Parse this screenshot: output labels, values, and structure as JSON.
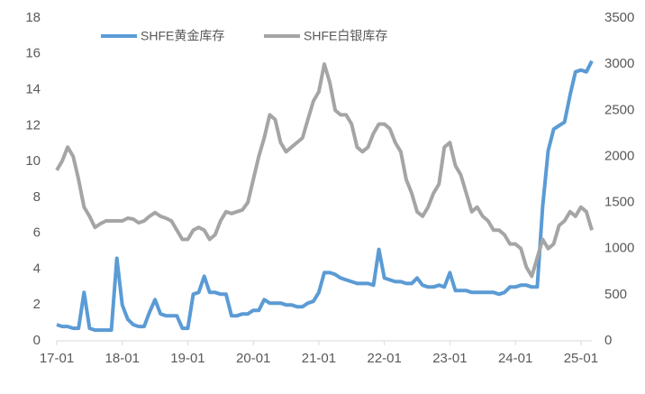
{
  "chart_data": {
    "type": "line",
    "categories": [
      "17-01",
      null,
      null,
      null,
      null,
      null,
      null,
      null,
      null,
      null,
      null,
      null,
      "18-01",
      null,
      null,
      null,
      null,
      null,
      null,
      null,
      null,
      null,
      null,
      null,
      "19-01",
      null,
      null,
      null,
      null,
      null,
      null,
      null,
      null,
      null,
      null,
      null,
      "20-01",
      null,
      null,
      null,
      null,
      null,
      null,
      null,
      null,
      null,
      null,
      null,
      "21-01",
      null,
      null,
      null,
      null,
      null,
      null,
      null,
      null,
      null,
      null,
      null,
      "22-01",
      null,
      null,
      null,
      null,
      null,
      null,
      null,
      null,
      null,
      null,
      null,
      "23-01",
      null,
      null,
      null,
      null,
      null,
      null,
      null,
      null,
      null,
      null,
      null,
      "24-01",
      null,
      null,
      null,
      null,
      null,
      null,
      null,
      null,
      null,
      null,
      null,
      "25-01",
      null,
      null
    ],
    "series": [
      {
        "name": "SHFE黄金库存",
        "color": "#5b9bd5",
        "axis": "y",
        "values": [
          0.9,
          0.8,
          0.8,
          0.7,
          0.7,
          2.7,
          0.7,
          0.6,
          0.6,
          0.6,
          0.6,
          4.6,
          2.0,
          1.2,
          0.9,
          0.8,
          0.8,
          1.6,
          2.3,
          1.5,
          1.4,
          1.4,
          1.4,
          0.7,
          0.7,
          2.6,
          2.7,
          3.6,
          2.7,
          2.7,
          2.6,
          2.6,
          1.4,
          1.4,
          1.5,
          1.5,
          1.7,
          1.7,
          2.3,
          2.1,
          2.1,
          2.1,
          2.0,
          2.0,
          1.9,
          1.9,
          2.1,
          2.2,
          2.7,
          3.8,
          3.8,
          3.7,
          3.5,
          3.4,
          3.3,
          3.2,
          3.2,
          3.2,
          3.1,
          5.1,
          3.5,
          3.4,
          3.3,
          3.3,
          3.2,
          3.2,
          3.5,
          3.1,
          3.0,
          3.0,
          3.1,
          3.0,
          3.8,
          2.8,
          2.8,
          2.8,
          2.7,
          2.7,
          2.7,
          2.7,
          2.7,
          2.6,
          2.7,
          3.0,
          3.0,
          3.1,
          3.1,
          3.0,
          3.0,
          7.5,
          10.6,
          11.8,
          12.0,
          12.2,
          13.7,
          15.0,
          15.1,
          15.0,
          15.6
        ]
      },
      {
        "name": "SHFE白银库存",
        "color": "#a5a5a5",
        "axis": "y2",
        "values": [
          1850,
          1950,
          2100,
          2000,
          1750,
          1450,
          1350,
          1230,
          1270,
          1300,
          1300,
          1300,
          1300,
          1330,
          1320,
          1280,
          1300,
          1350,
          1390,
          1350,
          1330,
          1300,
          1200,
          1100,
          1100,
          1200,
          1230,
          1200,
          1100,
          1150,
          1300,
          1400,
          1380,
          1400,
          1420,
          1500,
          1750,
          2000,
          2200,
          2450,
          2400,
          2150,
          2050,
          2100,
          2150,
          2200,
          2400,
          2600,
          2700,
          3000,
          2800,
          2500,
          2450,
          2450,
          2350,
          2100,
          2050,
          2100,
          2250,
          2350,
          2350,
          2300,
          2150,
          2050,
          1750,
          1600,
          1400,
          1350,
          1450,
          1600,
          1700,
          2100,
          2150,
          1900,
          1800,
          1600,
          1400,
          1450,
          1350,
          1300,
          1200,
          1200,
          1150,
          1050,
          1050,
          1000,
          800,
          700,
          900,
          1100,
          1000,
          1050,
          1250,
          1300,
          1400,
          1350,
          1450,
          1400,
          1200
        ]
      }
    ],
    "ylim": [
      0,
      18
    ],
    "yticks": [
      0,
      2,
      4,
      6,
      8,
      10,
      12,
      14,
      16,
      18
    ],
    "y2lim": [
      0,
      3500
    ],
    "y2ticks": [
      0,
      500,
      1000,
      1500,
      2000,
      2500,
      3000,
      3500
    ],
    "legend": "top"
  }
}
